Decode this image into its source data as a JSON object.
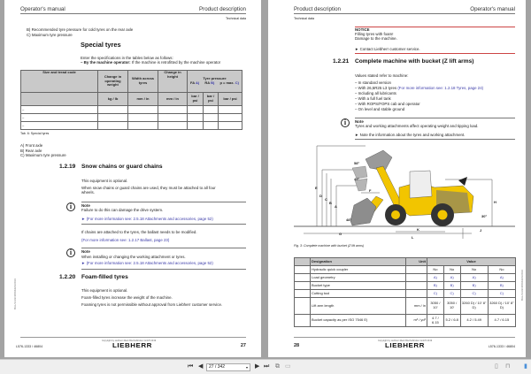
{
  "viewer": {
    "page_input": "27 / 342",
    "icons": [
      "first-page-icon",
      "previous-page-icon",
      "dropdown-icon",
      "next-page-icon",
      "last-page-icon",
      "single-page-icon",
      "two-page-icon",
      "fit-page-icon",
      "bookmark-icon"
    ]
  },
  "left": {
    "header_left": "Operator's manual",
    "header_right": "Product description",
    "subheader": "Technical data",
    "fn_b": "B) Recommended tyre pressure for cold tyres on the rear axle",
    "fn_c": "C) Maximum tyre pressure",
    "special_title": "Special tyres",
    "special_intro": "Enter the specifications in the tables below as follows:",
    "special_bullet_bold": "– By the machine operator:",
    "special_bullet": " If the machine is retrofitted by the machine operator",
    "table": {
      "h_size": "Size and tread code",
      "h_weight": "Change in operating weight",
      "h_width": "Width across tyres",
      "h_height": "Change in height",
      "h_pressure": "Tyre pressure",
      "h_fa": "FA",
      "h_fa_sup": "A)",
      "h_ra": "RA",
      "h_ra_sup": "B)",
      "h_pmax": "p = max.",
      "h_pmax_sup": "C)",
      "u_weight": "kg / lb",
      "u_width": "mm / in",
      "u_height": "mm / in",
      "u_fa": "bar / psi",
      "u_ra": "bar / psi",
      "u_pmax": "bar / psi",
      "rows": [
        "–",
        "–",
        "–"
      ]
    },
    "tab_caption": "Tab. 6: Special tyres",
    "fa": "A) Front axle",
    "ra": "B) Rear axle",
    "pmax": "C) Maximum tyre pressure",
    "s1219_num": "1.2.19",
    "s1219_title": "Snow chains or guard chains",
    "s1219_p1": "This equipment is optional.",
    "s1219_p2a": "When snow chains or guard chains are used, they must be attached to all four",
    "s1219_p2b": "wheels.",
    "note1_title": "Note",
    "note1_text": "Failure to do this can damage the drive system.",
    "note1_link": "► (For more information see: 2.5.18 Attachments and accessories, page 52)",
    "ballast_text": "If chains are attached to the tyres, the ballast needs to be modified.",
    "ballast_link": "(For more information see: 1.2.17 Ballast, page 23)",
    "note2_title": "Note",
    "note2_text": "When installing or changing the working attachment or tyres.",
    "note2_link": "► (For more information see: 2.5.18 Attachments and accessories, page 52)",
    "s1220_num": "1.2.20",
    "s1220_title": "Foam-filled tyres",
    "s1220_p1": "This equipment is optional.",
    "s1220_p2": "Foam-filled tyres increase the weight of the machine.",
    "s1220_p3": "Foaming tyres is not permissible without approval from Liebherr customer service.",
    "copyright": "Copyright by Liebherr-Werk Bischofshofen GmbH 2019",
    "logo": "LIEBHERR",
    "doc_id": "L576-1333 / 46804",
    "page_no": "27",
    "side": "BAL/1333/46804/EN/2019"
  },
  "right": {
    "header_left": "Product description",
    "header_right": "Operator's manual",
    "subheader": "Technical data",
    "notice_title": "NOTICE",
    "notice_l1": "Filling tyres with foam!",
    "notice_l2": "Damage to the machine.",
    "notice_action": "► Contact Liebherr customer service.",
    "s1221_num": "1.2.21",
    "s1221_title": "Complete machine with bucket (Z lift arms)",
    "values_intro": "Values stated refer to machine:",
    "bullets": [
      "– In standard version",
      "– With 26,5R25 L3 tyres",
      "– Including all lubricants",
      "– With a full fuel tank",
      "– With ROPS/FOPS cab and operator",
      "– On level and stable ground"
    ],
    "bullet_link": " (For more information see: 1.2.18 Tyres, page 24)",
    "note_title": "Note",
    "note_text": "Tyres and working attachments affect operating weight and tipping load.",
    "note_action": "► Note the information about the tyres and working attachment.",
    "fig_labels": {
      "e": "E",
      "d": "D",
      "c": "C",
      "b": "B",
      "a": "A",
      "f": "F",
      "g": "G",
      "h": "H",
      "k": "K",
      "l": "L",
      "j": "J",
      "a58": "58°",
      "a45": "45°",
      "a48": "48°",
      "a30": "30°"
    },
    "fig_caption": "Fig. 3: Complete machine with bucket (Z lift arms)",
    "table": {
      "h_designation": "Designation",
      "h_unit": "Unit",
      "h_value": "Value",
      "rows": [
        {
          "name": "Hydraulic quick coupler",
          "unit": "",
          "v": [
            "No",
            "No",
            "No",
            "No"
          ]
        },
        {
          "name": "Load geometry",
          "unit": "",
          "v": [
            "A)",
            "A)",
            "A)",
            "A)"
          ]
        },
        {
          "name": "Bucket type",
          "unit": "",
          "v": [
            "B)",
            "B)",
            "B)",
            "B)"
          ]
        },
        {
          "name": "Cutting tool",
          "unit": "",
          "v": [
            "C)",
            "C)",
            "C)",
            "C)"
          ]
        },
        {
          "name": "Lift arm length",
          "unit": "mm / in",
          "v": [
            "3050 / 10'",
            "3050 / 10'",
            "3260 D) / 10' 8\" D)",
            "3260 D) / 10' 8\" D)"
          ]
        },
        {
          "name": "Bucket capacity as per ISO 7546 E)",
          "unit": "m³ / yd³",
          "v": [
            "4.7 / 6.15",
            "5.2 / 6.8",
            "4.2 / 5.49",
            "4.7 / 6.15"
          ]
        }
      ]
    },
    "copyright": "Copyright by Liebherr-Werk Bischofshofen GmbH 2019",
    "logo": "LIEBHERR",
    "doc_id": "L576-1333 / 46804",
    "page_no": "28",
    "side": "BAL/1333/46804/EN/2019"
  },
  "colors": {
    "machine_yellow": "#f2c500",
    "link": "#3a3aa8",
    "notice_red": "#c44444",
    "table_header": "#c9c9c9"
  }
}
